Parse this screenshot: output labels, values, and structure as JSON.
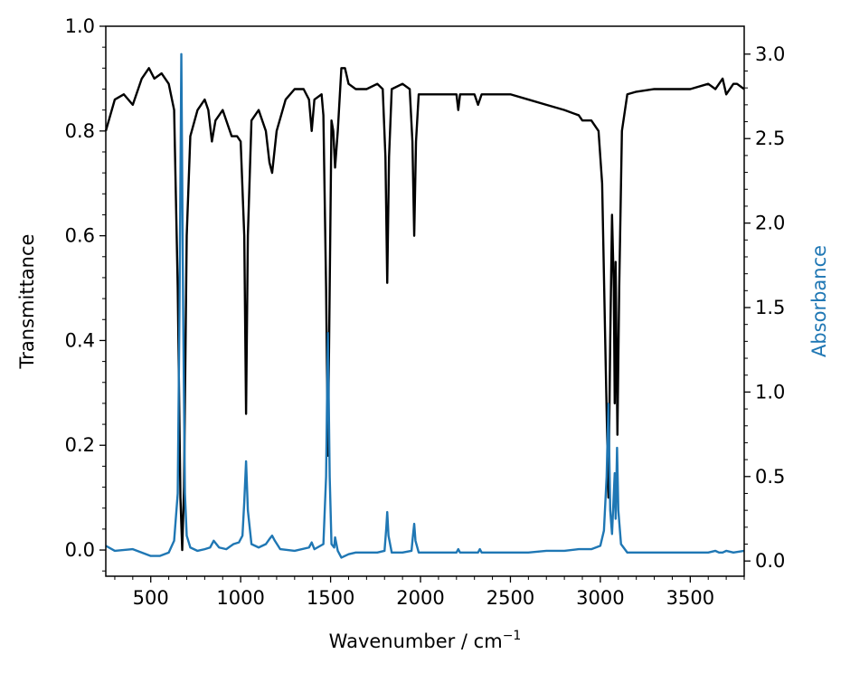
{
  "chart_data": {
    "type": "line",
    "xlabel": "Wavenumber / cm",
    "xlabel_sup": "−1",
    "ylabel_left": "Transmittance",
    "ylabel_right": "Absorbance",
    "xlim": [
      250,
      3800
    ],
    "ylim_left": [
      -0.05,
      1.0
    ],
    "ylim_right": [
      -0.09,
      3.165
    ],
    "x_ticks": [
      500,
      1000,
      1500,
      2000,
      2500,
      3000,
      3500
    ],
    "x_tick_labels": [
      "500",
      "1000",
      "1500",
      "2000",
      "2500",
      "3000",
      "3500"
    ],
    "y_left_ticks": [
      0.0,
      0.2,
      0.4,
      0.6,
      0.8,
      1.0
    ],
    "y_left_tick_labels": [
      "0.0",
      "0.2",
      "0.4",
      "0.6",
      "0.8",
      "1.0"
    ],
    "y_right_ticks": [
      0.0,
      0.5,
      1.0,
      1.5,
      2.0,
      2.5,
      3.0
    ],
    "y_right_tick_labels": [
      "0.0",
      "0.5",
      "1.0",
      "1.5",
      "2.0",
      "2.5",
      "3.0"
    ],
    "grid": false,
    "series": [
      {
        "axis": "left",
        "color": "#000000",
        "points": [
          [
            250,
            0.8
          ],
          [
            300,
            0.86
          ],
          [
            350,
            0.87
          ],
          [
            400,
            0.85
          ],
          [
            450,
            0.9
          ],
          [
            490,
            0.92
          ],
          [
            520,
            0.9
          ],
          [
            560,
            0.91
          ],
          [
            600,
            0.89
          ],
          [
            630,
            0.84
          ],
          [
            650,
            0.5
          ],
          [
            665,
            0.1
          ],
          [
            675,
            0.0
          ],
          [
            685,
            0.12
          ],
          [
            700,
            0.6
          ],
          [
            720,
            0.79
          ],
          [
            760,
            0.84
          ],
          [
            800,
            0.86
          ],
          [
            820,
            0.84
          ],
          [
            840,
            0.78
          ],
          [
            860,
            0.82
          ],
          [
            900,
            0.84
          ],
          [
            950,
            0.79
          ],
          [
            980,
            0.79
          ],
          [
            1000,
            0.78
          ],
          [
            1020,
            0.6
          ],
          [
            1030,
            0.26
          ],
          [
            1040,
            0.6
          ],
          [
            1060,
            0.82
          ],
          [
            1100,
            0.84
          ],
          [
            1140,
            0.8
          ],
          [
            1160,
            0.74
          ],
          [
            1175,
            0.72
          ],
          [
            1200,
            0.8
          ],
          [
            1250,
            0.86
          ],
          [
            1300,
            0.88
          ],
          [
            1350,
            0.88
          ],
          [
            1380,
            0.86
          ],
          [
            1395,
            0.8
          ],
          [
            1410,
            0.86
          ],
          [
            1450,
            0.87
          ],
          [
            1460,
            0.83
          ],
          [
            1475,
            0.5
          ],
          [
            1485,
            0.18
          ],
          [
            1495,
            0.5
          ],
          [
            1505,
            0.82
          ],
          [
            1515,
            0.8
          ],
          [
            1525,
            0.73
          ],
          [
            1540,
            0.8
          ],
          [
            1560,
            0.92
          ],
          [
            1580,
            0.92
          ],
          [
            1600,
            0.89
          ],
          [
            1640,
            0.88
          ],
          [
            1700,
            0.88
          ],
          [
            1760,
            0.89
          ],
          [
            1790,
            0.88
          ],
          [
            1805,
            0.75
          ],
          [
            1815,
            0.51
          ],
          [
            1825,
            0.75
          ],
          [
            1840,
            0.88
          ],
          [
            1900,
            0.89
          ],
          [
            1940,
            0.88
          ],
          [
            1955,
            0.78
          ],
          [
            1965,
            0.6
          ],
          [
            1975,
            0.78
          ],
          [
            1990,
            0.87
          ],
          [
            2050,
            0.87
          ],
          [
            2100,
            0.87
          ],
          [
            2200,
            0.87
          ],
          [
            2210,
            0.84
          ],
          [
            2220,
            0.87
          ],
          [
            2300,
            0.87
          ],
          [
            2320,
            0.85
          ],
          [
            2340,
            0.87
          ],
          [
            2500,
            0.87
          ],
          [
            2600,
            0.86
          ],
          [
            2700,
            0.85
          ],
          [
            2800,
            0.84
          ],
          [
            2880,
            0.83
          ],
          [
            2900,
            0.82
          ],
          [
            2950,
            0.82
          ],
          [
            2990,
            0.8
          ],
          [
            3010,
            0.7
          ],
          [
            3030,
            0.35
          ],
          [
            3045,
            0.1
          ],
          [
            3055,
            0.4
          ],
          [
            3065,
            0.64
          ],
          [
            3075,
            0.5
          ],
          [
            3080,
            0.28
          ],
          [
            3085,
            0.55
          ],
          [
            3095,
            0.22
          ],
          [
            3105,
            0.5
          ],
          [
            3120,
            0.8
          ],
          [
            3150,
            0.87
          ],
          [
            3200,
            0.875
          ],
          [
            3300,
            0.88
          ],
          [
            3400,
            0.88
          ],
          [
            3500,
            0.88
          ],
          [
            3600,
            0.89
          ],
          [
            3640,
            0.88
          ],
          [
            3680,
            0.9
          ],
          [
            3700,
            0.87
          ],
          [
            3740,
            0.89
          ],
          [
            3760,
            0.89
          ],
          [
            3800,
            0.88
          ]
        ]
      },
      {
        "axis": "right",
        "color": "#1f77b4",
        "points": [
          [
            250,
            0.09
          ],
          [
            300,
            0.06
          ],
          [
            400,
            0.07
          ],
          [
            450,
            0.05
          ],
          [
            500,
            0.03
          ],
          [
            550,
            0.03
          ],
          [
            600,
            0.05
          ],
          [
            630,
            0.12
          ],
          [
            650,
            0.4
          ],
          [
            660,
            1.5
          ],
          [
            670,
            3.0
          ],
          [
            680,
            1.5
          ],
          [
            690,
            0.4
          ],
          [
            700,
            0.15
          ],
          [
            720,
            0.08
          ],
          [
            760,
            0.06
          ],
          [
            800,
            0.07
          ],
          [
            830,
            0.08
          ],
          [
            850,
            0.12
          ],
          [
            880,
            0.08
          ],
          [
            920,
            0.07
          ],
          [
            960,
            0.1
          ],
          [
            990,
            0.11
          ],
          [
            1010,
            0.15
          ],
          [
            1020,
            0.35
          ],
          [
            1030,
            0.59
          ],
          [
            1040,
            0.3
          ],
          [
            1060,
            0.1
          ],
          [
            1100,
            0.08
          ],
          [
            1140,
            0.1
          ],
          [
            1160,
            0.13
          ],
          [
            1175,
            0.15
          ],
          [
            1190,
            0.12
          ],
          [
            1220,
            0.07
          ],
          [
            1300,
            0.06
          ],
          [
            1380,
            0.08
          ],
          [
            1395,
            0.11
          ],
          [
            1410,
            0.07
          ],
          [
            1460,
            0.1
          ],
          [
            1475,
            0.5
          ],
          [
            1485,
            1.35
          ],
          [
            1495,
            0.5
          ],
          [
            1505,
            0.1
          ],
          [
            1520,
            0.08
          ],
          [
            1525,
            0.14
          ],
          [
            1540,
            0.06
          ],
          [
            1560,
            0.02
          ],
          [
            1600,
            0.04
          ],
          [
            1640,
            0.05
          ],
          [
            1700,
            0.05
          ],
          [
            1760,
            0.05
          ],
          [
            1800,
            0.06
          ],
          [
            1810,
            0.2
          ],
          [
            1815,
            0.29
          ],
          [
            1822,
            0.15
          ],
          [
            1840,
            0.05
          ],
          [
            1900,
            0.05
          ],
          [
            1950,
            0.06
          ],
          [
            1958,
            0.15
          ],
          [
            1965,
            0.22
          ],
          [
            1972,
            0.12
          ],
          [
            1990,
            0.05
          ],
          [
            2100,
            0.05
          ],
          [
            2200,
            0.05
          ],
          [
            2210,
            0.07
          ],
          [
            2220,
            0.05
          ],
          [
            2320,
            0.05
          ],
          [
            2330,
            0.07
          ],
          [
            2340,
            0.05
          ],
          [
            2500,
            0.05
          ],
          [
            2600,
            0.05
          ],
          [
            2700,
            0.06
          ],
          [
            2800,
            0.06
          ],
          [
            2880,
            0.07
          ],
          [
            2950,
            0.07
          ],
          [
            3000,
            0.09
          ],
          [
            3020,
            0.18
          ],
          [
            3035,
            0.5
          ],
          [
            3045,
            0.93
          ],
          [
            3055,
            0.3
          ],
          [
            3065,
            0.16
          ],
          [
            3075,
            0.4
          ],
          [
            3080,
            0.52
          ],
          [
            3085,
            0.25
          ],
          [
            3093,
            0.67
          ],
          [
            3100,
            0.3
          ],
          [
            3115,
            0.1
          ],
          [
            3150,
            0.05
          ],
          [
            3300,
            0.05
          ],
          [
            3500,
            0.05
          ],
          [
            3600,
            0.05
          ],
          [
            3640,
            0.06
          ],
          [
            3660,
            0.05
          ],
          [
            3680,
            0.05
          ],
          [
            3700,
            0.06
          ],
          [
            3740,
            0.05
          ],
          [
            3800,
            0.06
          ]
        ]
      }
    ]
  }
}
